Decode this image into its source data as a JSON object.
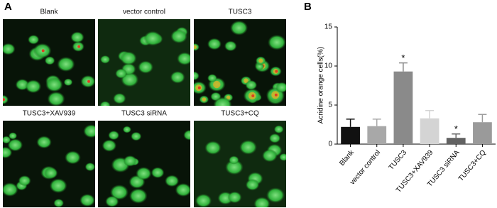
{
  "panel_a": {
    "label": "A",
    "images": [
      {
        "caption": "Blank"
      },
      {
        "caption": "vector control"
      },
      {
        "caption": "TUSC3"
      },
      {
        "caption": "TUSC3+XAV939"
      },
      {
        "caption": "TUSC3 siRNA"
      },
      {
        "caption": "TUSC3+CQ"
      }
    ]
  },
  "chart_data": {
    "type": "bar",
    "panel_label": "B",
    "ylabel": "Acridine orange cells(%)",
    "categories": [
      "Blank",
      "vector control",
      "TUSC3",
      "TUSC3+XAV939",
      "TUSC3 siRNA",
      "TUSC3+CQ"
    ],
    "values": [
      2.2,
      2.3,
      9.3,
      3.3,
      0.8,
      2.8
    ],
    "errors": [
      1.0,
      0.9,
      1.1,
      1.0,
      0.5,
      1.0
    ],
    "colors": [
      "#111111",
      "#a8a8a8",
      "#8a8a8a",
      "#d4d4d4",
      "#626262",
      "#9a9a9a"
    ],
    "ylim": [
      0,
      15
    ],
    "yticks": [
      0,
      5,
      10,
      15
    ],
    "annotations": [
      {
        "text": "*",
        "category": "TUSC3"
      },
      {
        "text": "*",
        "category": "TUSC3 siRNA"
      }
    ]
  }
}
